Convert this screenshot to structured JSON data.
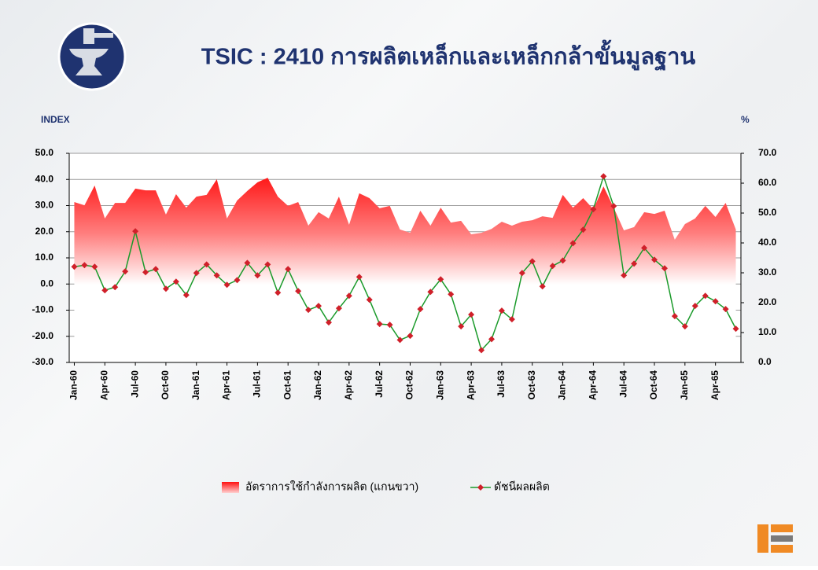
{
  "chart_data": {
    "type": "line",
    "title": "TSIC : 2410 การผลิตเหล็กและเหล็กกล้าขั้นมูลฐาน",
    "y_label": "INDEX",
    "y2_label": "%",
    "categories": [
      "Jan-60",
      null,
      null,
      "Apr-60",
      null,
      null,
      "Jul-60",
      null,
      null,
      "Oct-60",
      null,
      null,
      "Jan-61",
      null,
      null,
      "Apr-61",
      null,
      null,
      "Jul-61",
      null,
      null,
      "Oct-61",
      null,
      null,
      "Jan-62",
      null,
      null,
      "Apr-62",
      null,
      null,
      "Jul-62",
      null,
      null,
      "Oct-62",
      null,
      null,
      "Jan-63",
      null,
      null,
      "Apr-63",
      null,
      null,
      "Jul-63",
      null,
      null,
      "Oct-63",
      null,
      null,
      "Jan-64",
      null,
      null,
      "Apr-64",
      null,
      null,
      "Jul-64",
      null,
      null,
      "Oct-64",
      null,
      null,
      "Jan-65",
      null,
      null,
      "Apr-65",
      null,
      null
    ],
    "series": [
      {
        "name": "อัตราการใช้กำลังการผลิต (แกนขวา)",
        "type": "area",
        "axis": "y2",
        "color": "#ff0000",
        "values": [
          53.7,
          52.6,
          59.2,
          48.2,
          53.4,
          53.4,
          58.2,
          57.6,
          57.6,
          49.5,
          56.3,
          51.8,
          55.5,
          56.1,
          61.3,
          48.2,
          54.2,
          57.4,
          60.3,
          61.8,
          55.5,
          52.4,
          53.7,
          45.8,
          50.3,
          48.2,
          55.5,
          46.1,
          56.6,
          55.0,
          51.6,
          52.4,
          44.5,
          43.4,
          50.8,
          45.8,
          51.8,
          46.8,
          47.4,
          42.9,
          43.4,
          44.7,
          47.1,
          45.8,
          47.1,
          47.6,
          48.9,
          48.4,
          56.1,
          51.8,
          55.0,
          51.3,
          58.9,
          51.8,
          44.2,
          45.3,
          50.3,
          49.7,
          50.8,
          41.1,
          46.3,
          48.2,
          52.4,
          48.7,
          53.4,
          44.5
        ]
      },
      {
        "name": "ดัชนีผลผลิต",
        "type": "line",
        "color": "#1a9a2a",
        "marker_color": "#d0202a",
        "values": [
          6.6,
          7.2,
          6.6,
          -2.4,
          -1.2,
          4.8,
          20.2,
          4.5,
          5.7,
          -1.8,
          0.9,
          -4.2,
          4.2,
          7.5,
          3.3,
          -0.3,
          1.5,
          8.1,
          3.3,
          7.5,
          -3.3,
          5.7,
          -2.7,
          -9.9,
          -8.4,
          -14.7,
          -9.3,
          -4.5,
          2.7,
          -6.0,
          -15.3,
          -15.6,
          -21.4,
          -19.8,
          -9.6,
          -3.0,
          1.8,
          -3.9,
          -16.2,
          -11.7,
          -25.3,
          -21.1,
          -10.2,
          -13.5,
          4.2,
          8.7,
          -0.9,
          6.9,
          9.0,
          15.6,
          20.8,
          28.6,
          41.2,
          29.8,
          3.3,
          7.8,
          13.8,
          9.3,
          6.0,
          -12.3,
          -16.2,
          -8.4,
          -4.5,
          -6.6,
          -9.6,
          -17.1
        ]
      }
    ],
    "ylim": [
      -30,
      50
    ],
    "yticks": [
      {
        "value": -30,
        "label": "-30.0"
      },
      {
        "value": -20,
        "label": "-20.0"
      },
      {
        "value": -10,
        "label": "-10.0"
      },
      {
        "value": 0,
        "label": "0.0"
      },
      {
        "value": 10,
        "label": "10.0"
      },
      {
        "value": 20,
        "label": "20.0"
      },
      {
        "value": 30,
        "label": "30.0"
      },
      {
        "value": 40,
        "label": "40.0"
      },
      {
        "value": 50,
        "label": "50.0"
      }
    ],
    "y2lim": [
      0,
      70
    ],
    "y2ticks": [
      {
        "value": 0,
        "label": "0.0"
      },
      {
        "value": 10,
        "label": "10.0"
      },
      {
        "value": 20,
        "label": "20.0"
      },
      {
        "value": 30,
        "label": "30.0"
      },
      {
        "value": 40,
        "label": "40.0"
      },
      {
        "value": 50,
        "label": "50.0"
      },
      {
        "value": 60,
        "label": "60.0"
      },
      {
        "value": 70,
        "label": "70.0"
      }
    ],
    "grid": true,
    "legend": "bottom"
  }
}
